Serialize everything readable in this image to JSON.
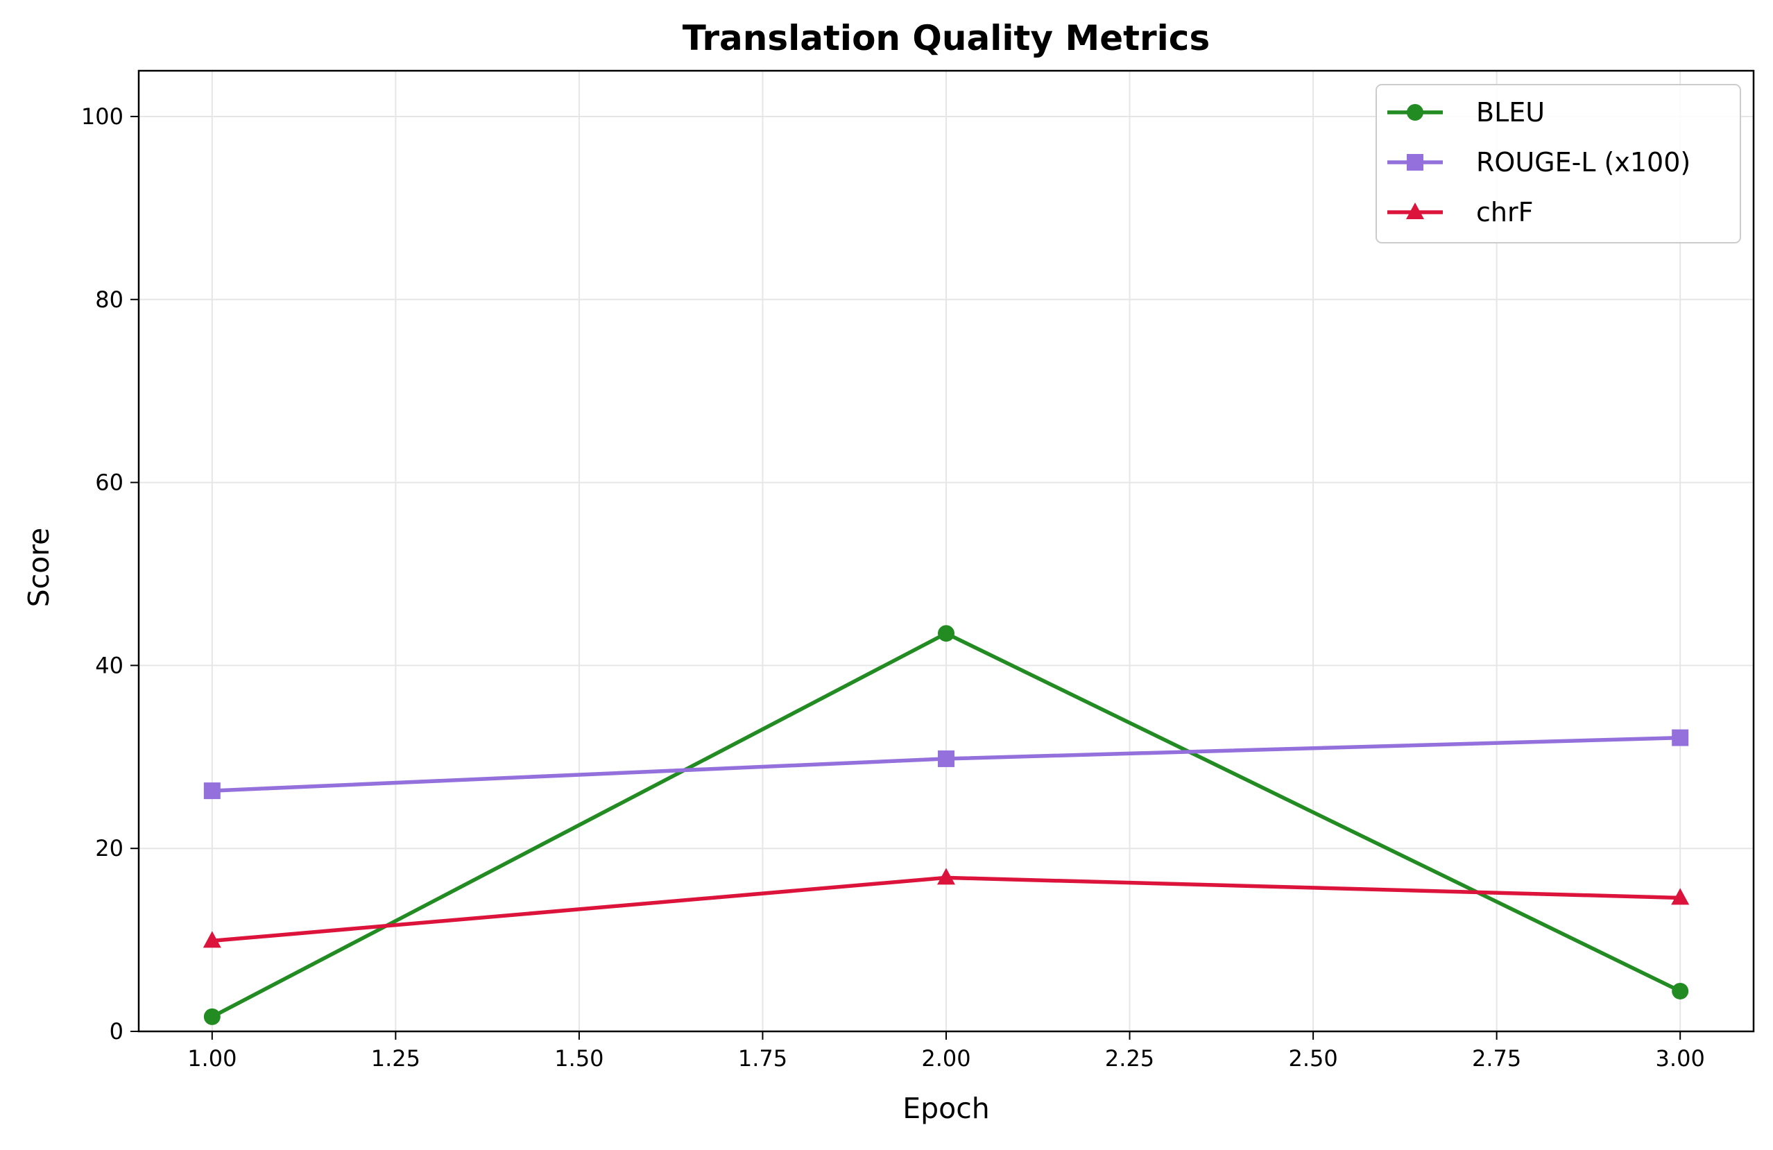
{
  "chart_data": {
    "type": "line",
    "title": "Translation Quality Metrics",
    "xlabel": "Epoch",
    "ylabel": "Score",
    "x": [
      1,
      2,
      3
    ],
    "xlim": [
      0.9,
      3.1
    ],
    "ylim": [
      0,
      105
    ],
    "xticks": [
      1.0,
      1.25,
      1.5,
      1.75,
      2.0,
      2.25,
      2.5,
      2.75,
      3.0
    ],
    "xtick_labels": [
      "1.00",
      "1.25",
      "1.50",
      "1.75",
      "2.00",
      "2.25",
      "2.50",
      "2.75",
      "3.00"
    ],
    "yticks": [
      0,
      20,
      40,
      60,
      80,
      100
    ],
    "ytick_labels": [
      "0",
      "20",
      "40",
      "60",
      "80",
      "100"
    ],
    "grid": true,
    "legend_position": "top-right",
    "series": [
      {
        "name": "BLEU",
        "values": [
          1.6,
          43.5,
          4.4
        ],
        "color": "#228b22",
        "marker": "circle"
      },
      {
        "name": "ROUGE-L (x100)",
        "values": [
          26.3,
          29.8,
          32.1
        ],
        "color": "#9370db",
        "marker": "square"
      },
      {
        "name": "chrF",
        "values": [
          9.9,
          16.8,
          14.6
        ],
        "color": "#dc143c",
        "marker": "triangle"
      }
    ]
  }
}
